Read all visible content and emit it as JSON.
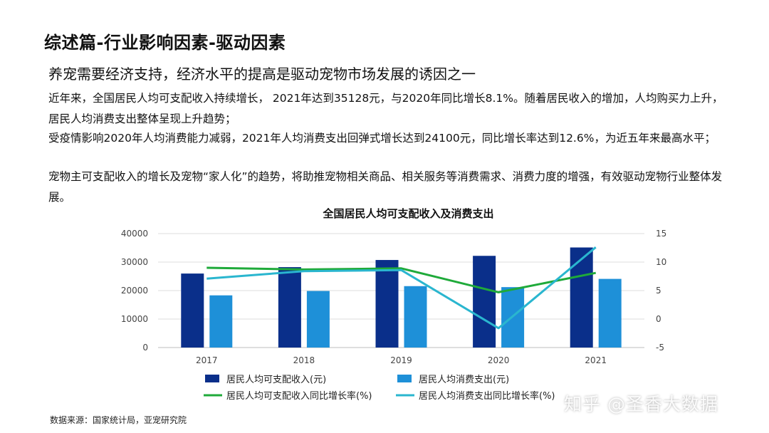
{
  "slide": {
    "heading": "综述篇-行业影响因素-驱动因素",
    "subheading": "养宠需要经济支持，经济水平的提高是驱动宠物市场发展的诱因之一",
    "paragraphs": [
      "近年来，全国居民人均可支配收入持续增长，  2021年达到35128元，与2020年同比增长8.1%。随着居民收入的增加，人均购买力上升，居民人均消费支出整体呈现上升趋势；",
      "受疫情影响2020年人均消费能力减弱，2021年人均消费支出回弹式增长达到24100元，同比增长率达到12.6%，为近五年来最高水平；",
      "宠物主可支配收入的增长及宠物“家人化”的趋势，将助推宠物相关商品、相关服务等消费需求、消费力度的增强，有效驱动宠物行业整体发展。"
    ],
    "source": "数据来源：国家统计局，亚宠研究院",
    "watermark": "知乎 @圣香大数据"
  },
  "chart_data": {
    "type": "bar",
    "title": "全国居民人均可支配收入及消费支出",
    "categories": [
      "2017",
      "2018",
      "2019",
      "2020",
      "2021"
    ],
    "y_left": {
      "ylim": [
        0,
        40000
      ],
      "ticks": [
        "0",
        "10000",
        "20000",
        "30000",
        "40000"
      ]
    },
    "y_right": {
      "ylim": [
        -5,
        15
      ],
      "ticks": [
        "-5",
        "0",
        "5",
        "10",
        "15"
      ]
    },
    "grid": true,
    "legend_position": "bottom",
    "series": [
      {
        "name": "居民人均可支配收入(元)",
        "type": "bar",
        "axis": "left",
        "color": "#0a2f8a",
        "values": [
          25974,
          28228,
          30733,
          32189,
          35128
        ]
      },
      {
        "name": "居民人均消费支出(元)",
        "type": "bar",
        "axis": "left",
        "color": "#1e90d8",
        "values": [
          18322,
          19853,
          21559,
          21210,
          24100
        ]
      },
      {
        "name": "居民人均可支配收入同比增长率(%)",
        "type": "line",
        "axis": "right",
        "color": "#1faa3a",
        "values": [
          9.0,
          8.7,
          8.9,
          4.7,
          8.1
        ]
      },
      {
        "name": "居民人均消费支出同比增长率(%)",
        "type": "line",
        "axis": "right",
        "color": "#2ab6cf",
        "values": [
          7.1,
          8.4,
          8.6,
          -1.6,
          12.6
        ]
      }
    ]
  }
}
